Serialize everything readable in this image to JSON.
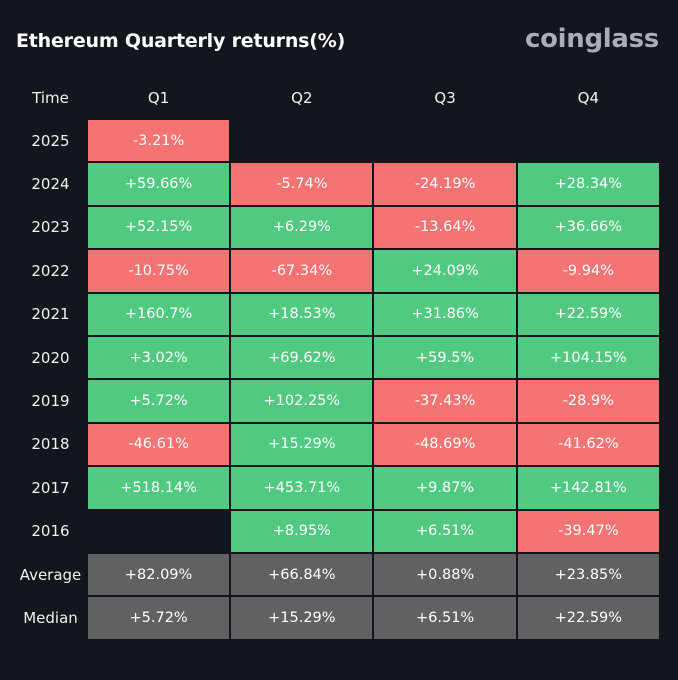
{
  "header": {
    "title": "Ethereum Quarterly returns(%)",
    "brand": "coinglass"
  },
  "colors": {
    "background": "#13161c",
    "positive": "#52c981",
    "negative": "#f57373",
    "stat": "#616161"
  },
  "chart_data": {
    "type": "table",
    "title": "Ethereum Quarterly returns(%)",
    "columns": [
      "Time",
      "Q1",
      "Q2",
      "Q3",
      "Q4"
    ],
    "rows": [
      {
        "label": "2025",
        "kind": "year",
        "values": [
          "-3.21%",
          "",
          "",
          ""
        ]
      },
      {
        "label": "2024",
        "kind": "year",
        "values": [
          "+59.66%",
          "-5.74%",
          "-24.19%",
          "+28.34%"
        ]
      },
      {
        "label": "2023",
        "kind": "year",
        "values": [
          "+52.15%",
          "+6.29%",
          "-13.64%",
          "+36.66%"
        ]
      },
      {
        "label": "2022",
        "kind": "year",
        "values": [
          "-10.75%",
          "-67.34%",
          "+24.09%",
          "-9.94%"
        ]
      },
      {
        "label": "2021",
        "kind": "year",
        "values": [
          "+160.7%",
          "+18.53%",
          "+31.86%",
          "+22.59%"
        ]
      },
      {
        "label": "2020",
        "kind": "year",
        "values": [
          "+3.02%",
          "+69.62%",
          "+59.5%",
          "+104.15%"
        ]
      },
      {
        "label": "2019",
        "kind": "year",
        "values": [
          "+5.72%",
          "+102.25%",
          "-37.43%",
          "-28.9%"
        ]
      },
      {
        "label": "2018",
        "kind": "year",
        "values": [
          "-46.61%",
          "+15.29%",
          "-48.69%",
          "-41.62%"
        ]
      },
      {
        "label": "2017",
        "kind": "year",
        "values": [
          "+518.14%",
          "+453.71%",
          "+9.87%",
          "+142.81%"
        ]
      },
      {
        "label": "2016",
        "kind": "year",
        "values": [
          "",
          "+8.95%",
          "+6.51%",
          "-39.47%"
        ]
      },
      {
        "label": "Average",
        "kind": "stat",
        "values": [
          "+82.09%",
          "+66.84%",
          "+0.88%",
          "+23.85%"
        ]
      },
      {
        "label": "Median",
        "kind": "stat",
        "values": [
          "+5.72%",
          "+15.29%",
          "+6.51%",
          "+22.59%"
        ]
      }
    ]
  }
}
